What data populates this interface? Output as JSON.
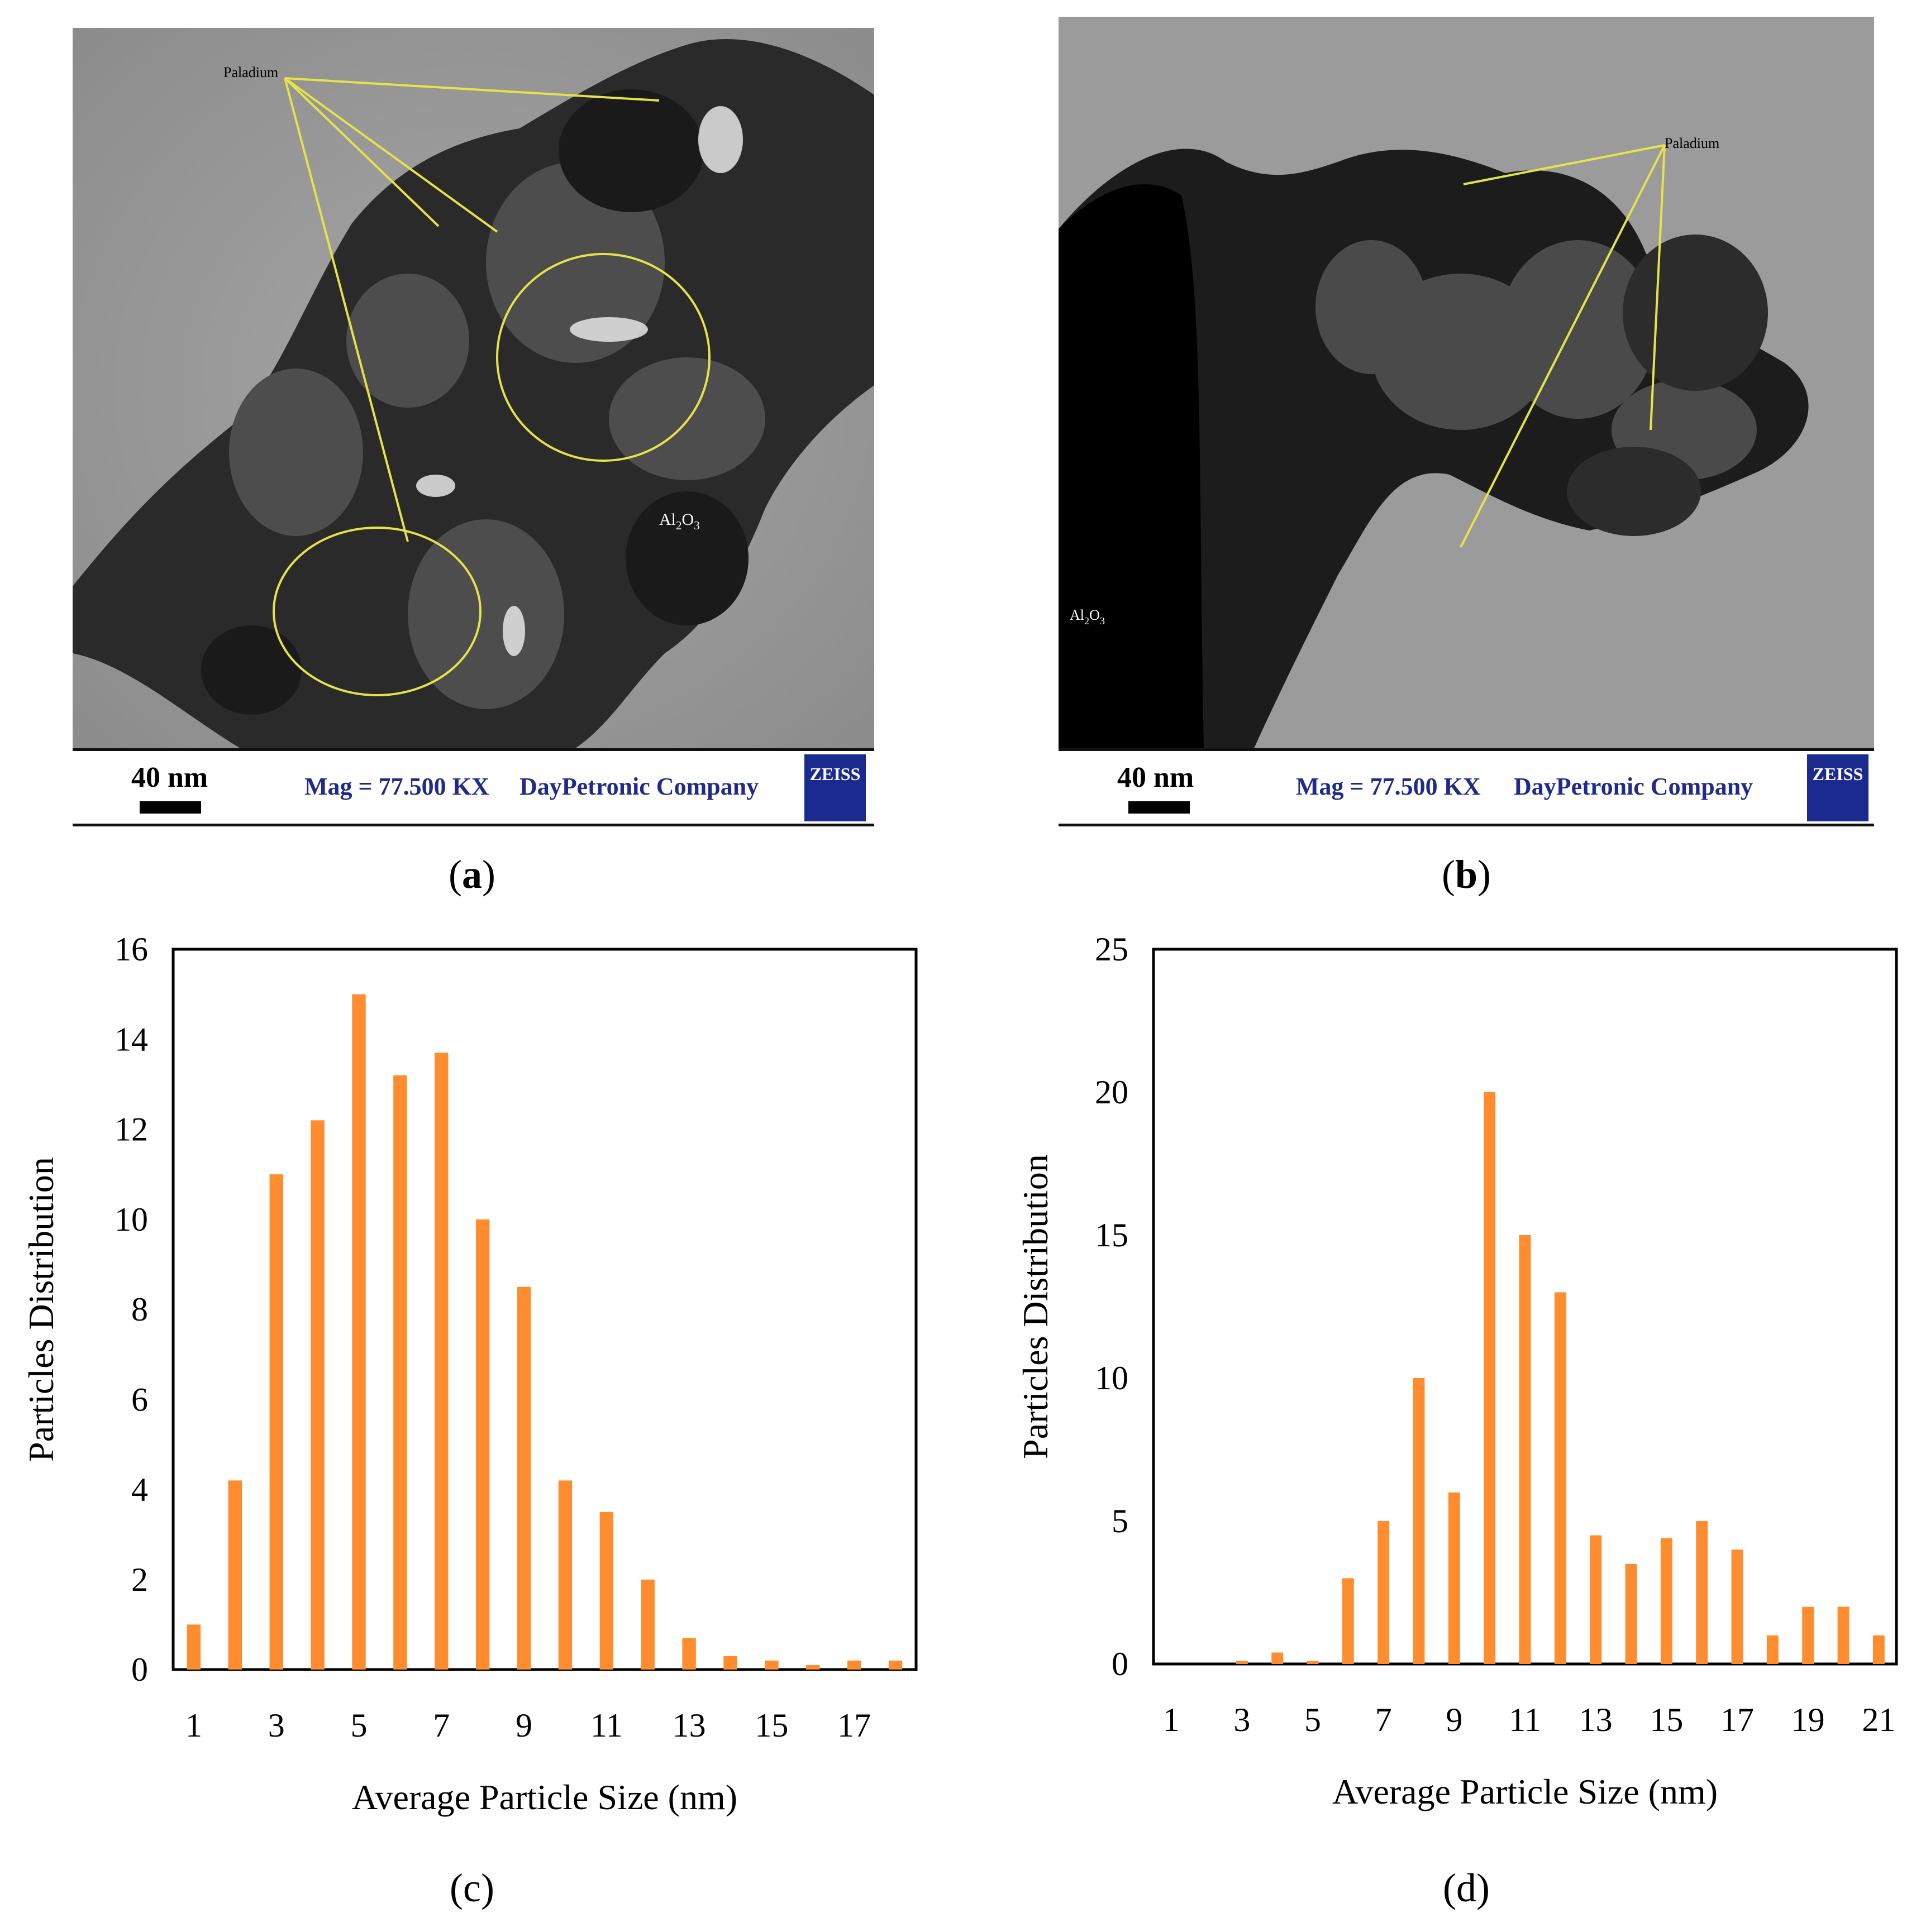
{
  "panels": {
    "a": {
      "caption_letter": "a",
      "labels": {
        "metal": "Paladium",
        "support": "Al2O3"
      },
      "scale_text": "40 nm",
      "mag_text": "Mag = 77.500 KX",
      "company_text": "DayPetronic Company",
      "logo_text": "ZEISS"
    },
    "b": {
      "caption_letter": "b",
      "labels": {
        "metal": "Paladium",
        "support": "Al2O3"
      },
      "scale_text": "40 nm",
      "mag_text": "Mag = 77.500 KX",
      "company_text": "DayPetronic Company",
      "logo_text": "ZEISS"
    },
    "c": {
      "caption_letter": "c"
    },
    "d": {
      "caption_letter": "d"
    }
  },
  "colors": {
    "bar": "#ff8c2e",
    "scale_text": "#1f2a8a",
    "logo_bg": "#1b2a8e",
    "annotation": "#e6e24a"
  },
  "chart_data": [
    {
      "id": "c",
      "type": "bar",
      "xlabel": "Average Particle Size (nm)",
      "ylabel": "Particles Distribution",
      "ylim": [
        0,
        16
      ],
      "yticks": [
        0,
        2,
        4,
        6,
        8,
        10,
        12,
        14,
        16
      ],
      "xticks": [
        1,
        3,
        5,
        7,
        9,
        11,
        13,
        15,
        17
      ],
      "grid": false,
      "x": [
        1,
        2,
        3,
        4,
        5,
        6,
        7,
        8,
        9,
        10,
        11,
        12,
        13,
        14,
        15,
        16,
        17,
        18
      ],
      "values": [
        1,
        4.2,
        11,
        12.2,
        15,
        13.2,
        13.7,
        10,
        8.5,
        4.2,
        3.5,
        2,
        0.7,
        0.3,
        0.2,
        0.1,
        0.2,
        0.2
      ]
    },
    {
      "id": "d",
      "type": "bar",
      "xlabel": "Average Particle Size (nm)",
      "ylabel": "Particles Distribution",
      "ylim": [
        0,
        25
      ],
      "yticks": [
        0,
        5,
        10,
        15,
        20,
        25
      ],
      "xticks": [
        1,
        3,
        5,
        7,
        9,
        11,
        13,
        15,
        17,
        19,
        21
      ],
      "grid": false,
      "x": [
        1,
        2,
        3,
        4,
        5,
        6,
        7,
        8,
        9,
        10,
        11,
        12,
        13,
        14,
        15,
        16,
        17,
        18,
        19,
        20,
        21
      ],
      "values": [
        0,
        0,
        0.1,
        0.4,
        0.1,
        3,
        5,
        10,
        6,
        20,
        15,
        13,
        4.5,
        3.5,
        4.4,
        5,
        4,
        1,
        2,
        2,
        1
      ]
    }
  ]
}
